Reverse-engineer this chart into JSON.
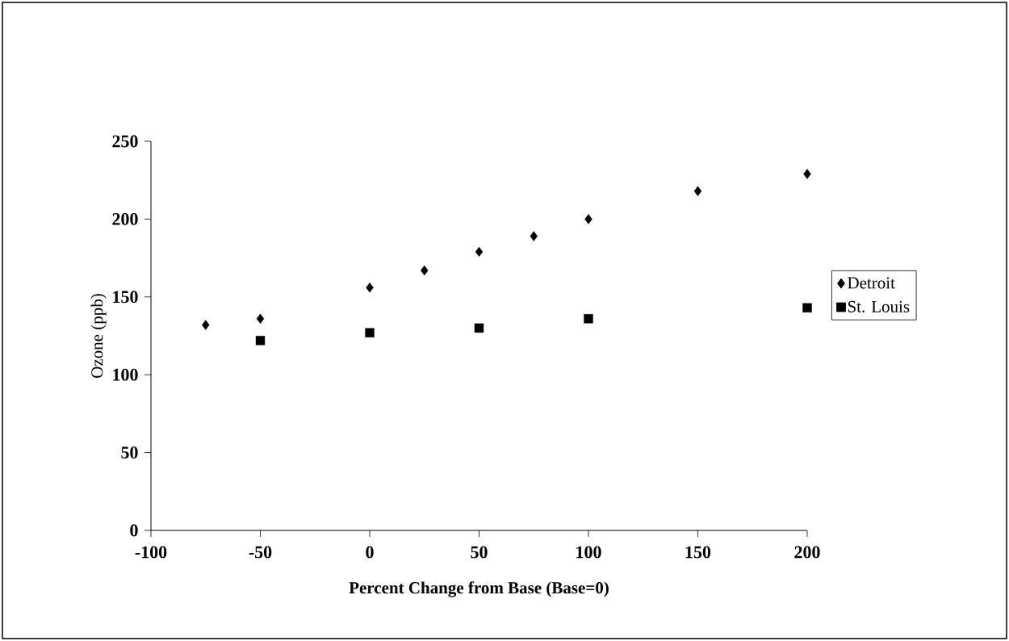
{
  "chart_data": {
    "type": "scatter",
    "xlabel": "Percent Change from Base (Base=0)",
    "ylabel": "Ozone (ppb)",
    "series": [
      {
        "name": "Detroit",
        "color": "#000000",
        "marker": "diamond",
        "x": [
          -75,
          -50,
          0,
          25,
          50,
          75,
          100,
          150,
          200
        ],
        "values": [
          132,
          136,
          156,
          167,
          179,
          189,
          200,
          218,
          229
        ]
      },
      {
        "name": "St. Louis",
        "color": "#000000",
        "marker": "square",
        "x": [
          -50,
          0,
          50,
          100,
          200
        ],
        "values": [
          122,
          127,
          130,
          136,
          143
        ]
      }
    ],
    "xlim": [
      -100,
      200
    ],
    "ylim": [
      0,
      250
    ],
    "xticks": [
      -100,
      -50,
      0,
      50,
      100,
      150,
      200
    ],
    "yticks": [
      0,
      50,
      100,
      150,
      200,
      250
    ],
    "grid": false,
    "legend": "right"
  }
}
